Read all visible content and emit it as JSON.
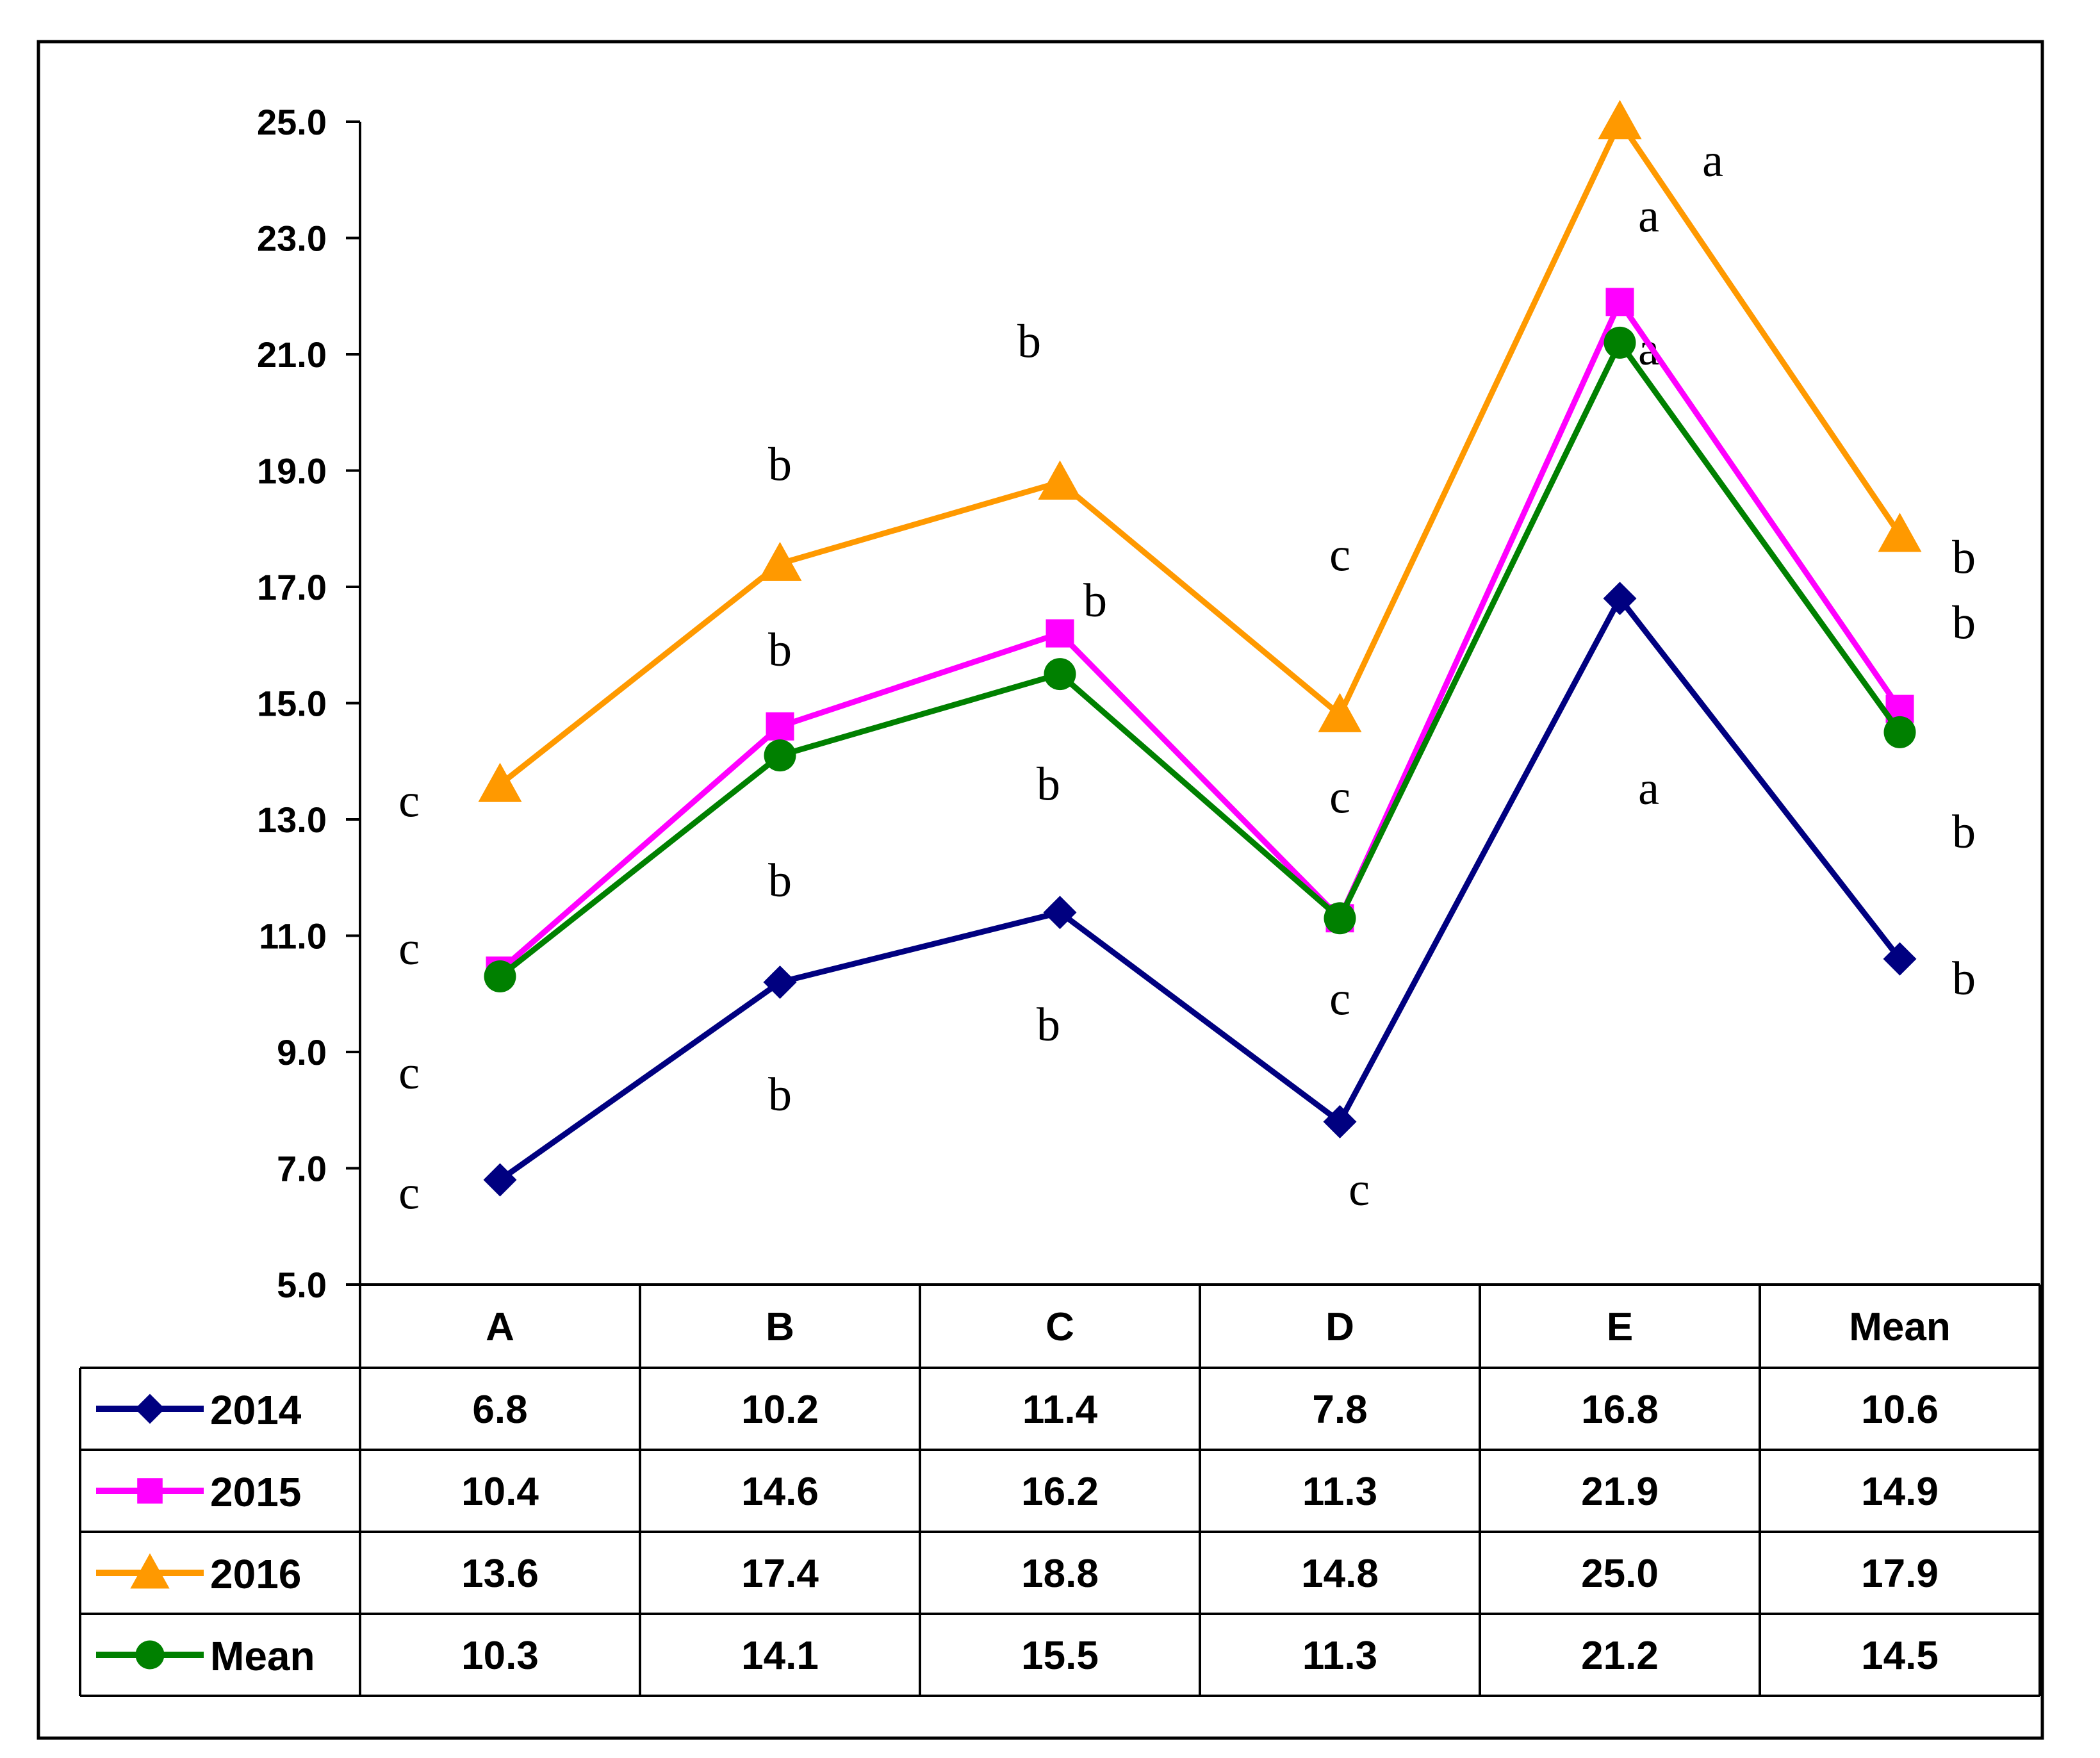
{
  "chart_data": {
    "type": "line",
    "title": "",
    "xlabel": "",
    "ylabel": "",
    "categories": [
      "A",
      "B",
      "C",
      "D",
      "E",
      "Mean"
    ],
    "ylim": [
      5.0,
      25.0
    ],
    "yticks": [
      "5.0",
      "7.0",
      "9.0",
      "11.0",
      "13.0",
      "15.0",
      "17.0",
      "19.0",
      "21.0",
      "23.0",
      "25.0"
    ],
    "series": [
      {
        "name": "2014",
        "color": "#000080",
        "marker": "diamond",
        "values": [
          6.8,
          10.2,
          11.4,
          7.8,
          16.8,
          10.6
        ],
        "display": [
          "6.8",
          "10.2",
          "11.4",
          "7.8",
          "16.8",
          "10.6"
        ],
        "letters": [
          "c",
          "b",
          "b",
          "c",
          "a",
          "b"
        ]
      },
      {
        "name": "2015",
        "color": "#ff00ff",
        "marker": "square",
        "values": [
          10.4,
          14.6,
          16.2,
          11.3,
          21.9,
          14.9
        ],
        "display": [
          "10.4",
          "14.6",
          "16.2",
          "11.3",
          "21.9",
          "14.9"
        ],
        "letters": [
          "c",
          "b",
          "b",
          "c",
          "a",
          "b"
        ]
      },
      {
        "name": "2016",
        "color": "#ff9900",
        "marker": "triangle",
        "values": [
          13.6,
          17.4,
          18.8,
          14.8,
          25.0,
          17.9
        ],
        "display": [
          "13.6",
          "17.4",
          "18.8",
          "14.8",
          "25.0",
          "17.9"
        ],
        "letters": [
          "c",
          "b",
          "b",
          "c",
          "a",
          "b"
        ]
      },
      {
        "name": "Mean",
        "color": "#008000",
        "marker": "circle",
        "values": [
          10.3,
          14.1,
          15.5,
          11.3,
          21.2,
          14.5
        ],
        "display": [
          "10.3",
          "14.1",
          "15.5",
          "11.3",
          "21.2",
          "14.5"
        ],
        "letters": [
          "c",
          "b",
          "b",
          "c",
          "a",
          "b"
        ]
      }
    ]
  }
}
